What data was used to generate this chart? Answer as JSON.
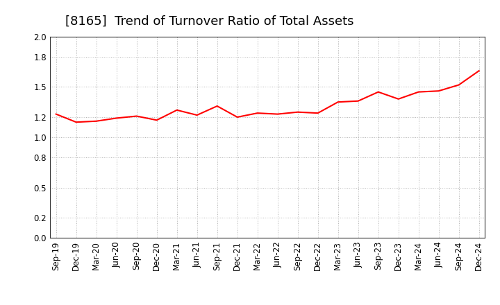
{
  "title": "[8165]  Trend of Turnover Ratio of Total Assets",
  "x_labels": [
    "Sep-19",
    "Dec-19",
    "Mar-20",
    "Jun-20",
    "Sep-20",
    "Dec-20",
    "Mar-21",
    "Jun-21",
    "Sep-21",
    "Dec-21",
    "Mar-22",
    "Jun-22",
    "Sep-22",
    "Dec-22",
    "Mar-23",
    "Jun-23",
    "Sep-23",
    "Dec-23",
    "Mar-24",
    "Jun-24",
    "Sep-24",
    "Dec-24"
  ],
  "y_values": [
    1.23,
    1.15,
    1.16,
    1.19,
    1.21,
    1.17,
    1.27,
    1.22,
    1.31,
    1.2,
    1.24,
    1.23,
    1.25,
    1.24,
    1.35,
    1.36,
    1.45,
    1.38,
    1.45,
    1.46,
    1.52,
    1.66
  ],
  "line_color": "#FF0000",
  "line_width": 1.5,
  "ylim": [
    0.0,
    2.0
  ],
  "yticks": [
    0.0,
    0.2,
    0.5,
    0.8,
    1.0,
    1.2,
    1.5,
    1.8,
    2.0
  ],
  "background_color": "#ffffff",
  "grid_color": "#aaaaaa",
  "title_fontsize": 13,
  "tick_fontsize": 8.5
}
